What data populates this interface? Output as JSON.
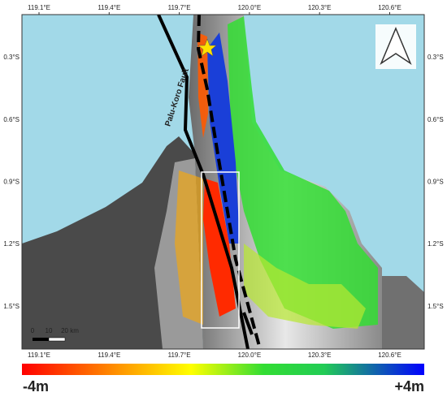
{
  "map": {
    "top_ticks": [
      "119.1°E",
      "119.4°E",
      "119.7°E",
      "120.0°E",
      "120.3°E",
      "120.6°E"
    ],
    "bottom_ticks": [
      "119.1°E",
      "119.4°E",
      "119.7°E",
      "120.0°E",
      "120.3°E",
      "120.6°E"
    ],
    "left_ticks": [
      "0.3°S",
      "0.6°S",
      "0.9°S",
      "1.2°S",
      "1.5°S"
    ],
    "right_ticks": [
      "0.3°S",
      "0.6°S",
      "0.9°S",
      "1.2°S",
      "1.5°S"
    ],
    "fault_label": "Palu-Koro Fault",
    "scale_labels": [
      "0",
      "10",
      "20 km"
    ],
    "colorbar": {
      "min_label": "-4m",
      "max_label": "+4m"
    }
  }
}
